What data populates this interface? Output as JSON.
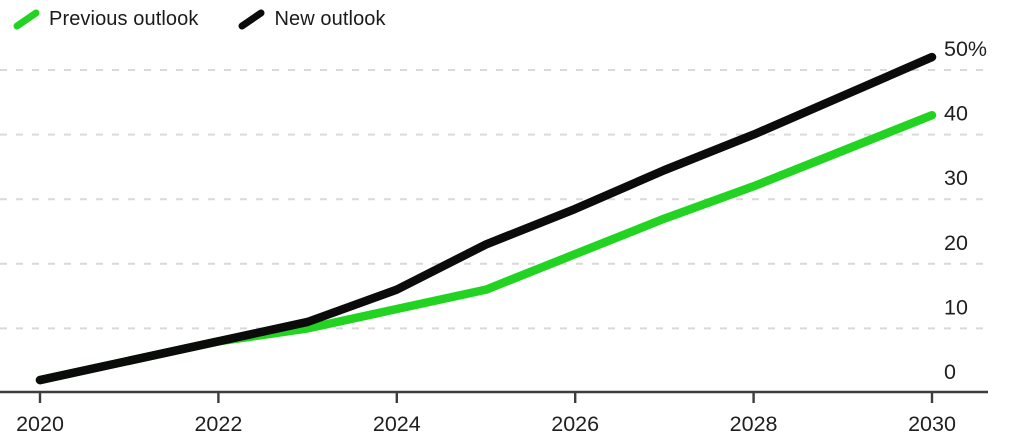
{
  "legend": {
    "items": [
      {
        "label": "Previous outlook",
        "color": "#22d322"
      },
      {
        "label": "New outlook",
        "color": "#0b0b0b"
      }
    ]
  },
  "chart_data": {
    "type": "line",
    "title": "",
    "unit": "%",
    "x": [
      2020,
      2021,
      2022,
      2023,
      2024,
      2025,
      2026,
      2027,
      2028,
      2029,
      2030
    ],
    "series": [
      {
        "name": "Previous outlook",
        "color": "#22d322",
        "values": [
          2,
          5,
          8,
          10,
          13,
          16,
          21.5,
          27,
          32,
          37.5,
          43
        ]
      },
      {
        "name": "New outlook",
        "color": "#0b0b0b",
        "values": [
          2,
          5,
          8,
          11,
          16,
          23,
          28.5,
          34.5,
          40,
          46,
          52
        ]
      }
    ],
    "xticks": [
      2020,
      2022,
      2024,
      2026,
      2028,
      2030
    ],
    "yticks": [
      {
        "value": 0,
        "label": "0"
      },
      {
        "value": 10,
        "label": "10"
      },
      {
        "value": 20,
        "label": "20"
      },
      {
        "value": 30,
        "label": "30"
      },
      {
        "value": 40,
        "label": "40"
      },
      {
        "value": 50,
        "label": "50%"
      }
    ],
    "xlim": [
      2020,
      2030
    ],
    "ylim": [
      0,
      52
    ],
    "grid": "horizontal-dashed",
    "legend_position": "top-left",
    "colors": {
      "gridline": "#d9d9d9",
      "axis": "#3d3d3d",
      "tick_label": "#1f1f1f"
    }
  }
}
